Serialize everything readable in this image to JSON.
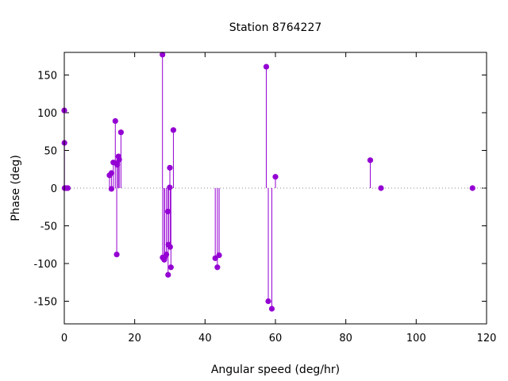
{
  "chart_data": {
    "type": "scatter",
    "style": "stem",
    "title": "Station 8764227",
    "xlabel": "Angular speed (deg/hr)",
    "ylabel": "Phase (deg)",
    "xlim": [
      0,
      120
    ],
    "ylim": [
      -180,
      180
    ],
    "xticks": [
      0,
      20,
      40,
      60,
      80,
      100,
      120
    ],
    "yticks": [
      -150,
      -100,
      -50,
      0,
      50,
      100,
      150
    ],
    "grid": false,
    "zero_line": "dotted",
    "color": "#9400d3",
    "points": [
      {
        "x": 0.0,
        "y": 103
      },
      {
        "x": 0.04,
        "y": 60
      },
      {
        "x": 0.08,
        "y": 0
      },
      {
        "x": 0.5,
        "y": 0
      },
      {
        "x": 1.0,
        "y": 0
      },
      {
        "x": 12.85,
        "y": 17
      },
      {
        "x": 13.4,
        "y": 20
      },
      {
        "x": 13.4,
        "y": -1
      },
      {
        "x": 13.94,
        "y": 34
      },
      {
        "x": 14.5,
        "y": 89
      },
      {
        "x": 14.9,
        "y": -88
      },
      {
        "x": 15.0,
        "y": 33
      },
      {
        "x": 15.04,
        "y": 31
      },
      {
        "x": 15.4,
        "y": 42
      },
      {
        "x": 15.6,
        "y": 38
      },
      {
        "x": 16.1,
        "y": 74
      },
      {
        "x": 27.9,
        "y": 177
      },
      {
        "x": 27.95,
        "y": -92
      },
      {
        "x": 28.4,
        "y": -95
      },
      {
        "x": 28.5,
        "y": -92
      },
      {
        "x": 29.0,
        "y": -88
      },
      {
        "x": 29.46,
        "y": -31
      },
      {
        "x": 29.5,
        "y": -115
      },
      {
        "x": 29.6,
        "y": -75
      },
      {
        "x": 29.96,
        "y": 1
      },
      {
        "x": 30.0,
        "y": 27
      },
      {
        "x": 30.08,
        "y": -78
      },
      {
        "x": 30.3,
        "y": -105
      },
      {
        "x": 31.0,
        "y": 77
      },
      {
        "x": 42.9,
        "y": -93
      },
      {
        "x": 43.5,
        "y": -105
      },
      {
        "x": 44.0,
        "y": -89
      },
      {
        "x": 57.4,
        "y": 161
      },
      {
        "x": 57.97,
        "y": -150
      },
      {
        "x": 58.98,
        "y": -160
      },
      {
        "x": 60.0,
        "y": 15
      },
      {
        "x": 86.95,
        "y": 37
      },
      {
        "x": 90.0,
        "y": 0
      },
      {
        "x": 116.0,
        "y": 0
      }
    ]
  }
}
